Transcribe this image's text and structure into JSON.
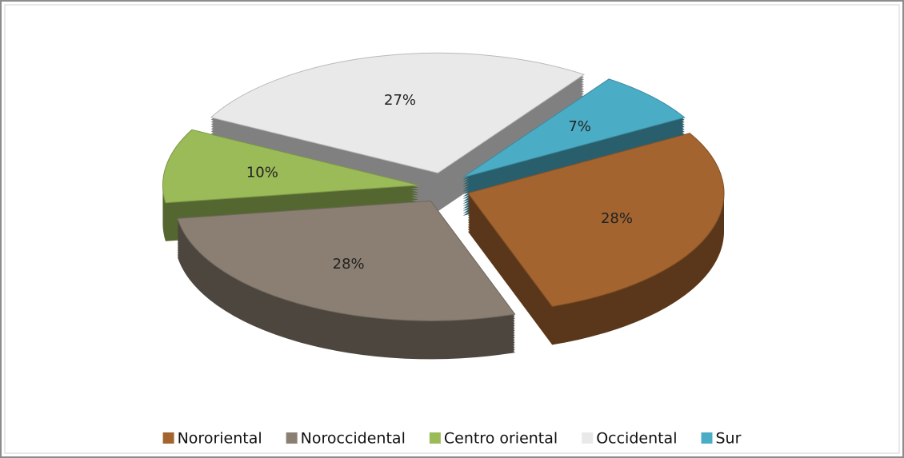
{
  "chart_data": {
    "type": "pie",
    "categories": [
      "Nororiental",
      "Noroccidental",
      "Centro oriental",
      "Occidental",
      "Sur"
    ],
    "values": [
      28,
      28,
      10,
      27,
      7
    ],
    "value_labels": [
      "28%",
      "28%",
      "10%",
      "27%",
      "7%"
    ],
    "colors": [
      "#a3642f",
      "#8a7f72",
      "#9bbb59",
      "#e9e9e9",
      "#4bacc6"
    ],
    "legend": "bottom"
  }
}
